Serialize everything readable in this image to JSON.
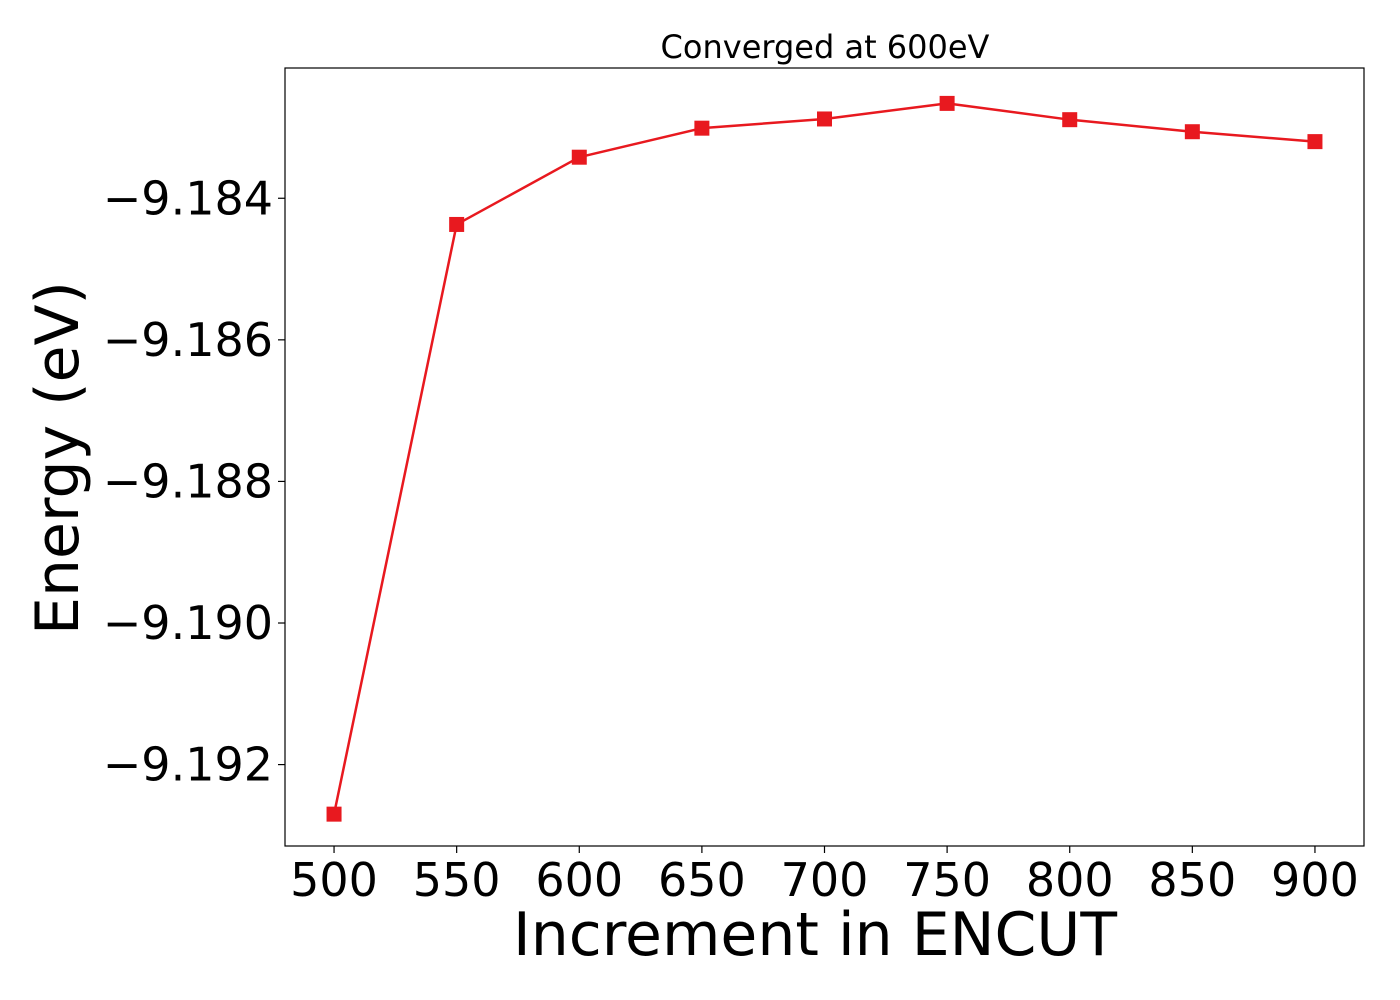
{
  "chart_data": {
    "type": "line",
    "title": "Converged at 600eV",
    "xlabel": "Increment in ENCUT",
    "ylabel": "Energy (eV)",
    "x": [
      500,
      550,
      600,
      650,
      700,
      750,
      800,
      850,
      900
    ],
    "series": [
      {
        "values": [
          -9.1927,
          -9.18437,
          -9.18342,
          -9.18301,
          -9.18288,
          -9.18266,
          -9.18289,
          -9.18306,
          -9.1832
        ],
        "color": "#e8191f",
        "marker": "square"
      }
    ],
    "xlim": [
      480,
      920
    ],
    "ylim": [
      -9.19315,
      -9.18216
    ],
    "xticks": [
      500,
      550,
      600,
      650,
      700,
      750,
      800,
      850,
      900
    ],
    "xtick_labels": [
      "500",
      "550",
      "600",
      "650",
      "700",
      "750",
      "800",
      "850",
      "900"
    ],
    "yticks": [
      -9.192,
      -9.19,
      -9.188,
      -9.186,
      -9.184
    ],
    "ytick_labels": [
      "−9.192",
      "−9.190",
      "−9.188",
      "−9.186",
      "−9.184"
    ],
    "grid": false,
    "legend": "none"
  }
}
